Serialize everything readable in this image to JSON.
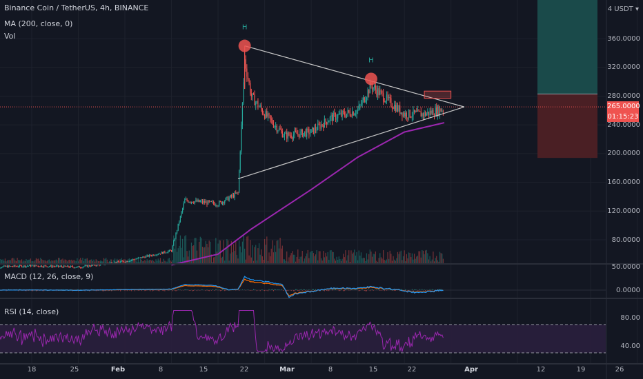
{
  "header": {
    "symbol": "Binance Coin / TetherUS, 4h, BINANCE",
    "indicator": "MA (200, close, 0)",
    "volume": "Vol"
  },
  "currency": "USDT",
  "price_axis": {
    "ticks": [
      "360.0000",
      "320.0000",
      "280.0000",
      "240.0000",
      "200.0000",
      "160.0000",
      "120.0000",
      "80.0000"
    ],
    "last_price": "265.0000",
    "countdown": "01:15:23"
  },
  "macd_panel": {
    "label": "MACD (12, 26, close, 9)",
    "ticks": [
      "50.0000",
      "0.0000"
    ]
  },
  "rsi_panel": {
    "label": "RSI (14, close)",
    "ticks": [
      "80.00",
      "40.00"
    ],
    "overbought": 70,
    "oversold": 30
  },
  "time_axis": [
    {
      "label": "18",
      "bold": false
    },
    {
      "label": "25",
      "bold": false
    },
    {
      "label": "Feb",
      "bold": true
    },
    {
      "label": "8",
      "bold": false
    },
    {
      "label": "15",
      "bold": false
    },
    {
      "label": "22",
      "bold": false
    },
    {
      "label": "Mar",
      "bold": true
    },
    {
      "label": "8",
      "bold": false
    },
    {
      "label": "15",
      "bold": false
    },
    {
      "label": "22",
      "bold": false
    },
    {
      "label": "Apr",
      "bold": true
    },
    {
      "label": "12",
      "bold": false
    },
    {
      "label": "19",
      "bold": false
    },
    {
      "label": "26",
      "bold": false
    }
  ],
  "annotations": {
    "head_marker": "H"
  },
  "colors": {
    "background": "#131722",
    "up": "#26a69a",
    "down": "#ef5350",
    "ma": "#9c27b0",
    "pattern_lines": "#c8c8c8",
    "target_zone": "#1a4a4a",
    "stop_zone": "#4a1f24",
    "rsi_band": "#2a1f3d",
    "rsi_line": "#9c27b0",
    "macd_line": "#2196f3",
    "signal_line": "#ff6d00"
  },
  "chart_data": {
    "type": "line",
    "title": "Binance Coin / TetherUS, 4h, BINANCE",
    "price_close_approx": {
      "x": [
        "Jan 12",
        "Jan 18",
        "Jan 25",
        "Feb 1",
        "Feb 8",
        "Feb 10",
        "Feb 15",
        "Feb 18",
        "Feb 19",
        "Feb 20",
        "Feb 22",
        "Feb 25",
        "Mar 1",
        "Mar 4",
        "Mar 8",
        "Mar 10",
        "Mar 13",
        "Mar 15",
        "Mar 18",
        "Mar 20",
        "Mar 21"
      ],
      "y": [
        42,
        44,
        42,
        50,
        65,
        135,
        130,
        145,
        330,
        280,
        255,
        225,
        230,
        250,
        260,
        295,
        270,
        255,
        255,
        260,
        262
      ]
    },
    "ma200_approx": {
      "x": [
        "Feb 8",
        "Feb 15",
        "Feb 20",
        "Mar 1",
        "Mar 8",
        "Mar 15",
        "Mar 21"
      ],
      "y": [
        45,
        60,
        95,
        150,
        195,
        230,
        243
      ]
    },
    "triangle_pattern": {
      "upper": [
        {
          "x": "Feb 19",
          "y": 350
        },
        {
          "x": "Mar 24",
          "y": 265
        }
      ],
      "lower": [
        {
          "x": "Feb 18",
          "y": 165
        },
        {
          "x": "Mar 24",
          "y": 265
        }
      ]
    },
    "heads": [
      {
        "x": "Feb 19",
        "y": 350
      },
      {
        "x": "Mar 10",
        "y": 304
      }
    ],
    "breakout_box": {
      "x_start": "Mar 18",
      "x_end": "Mar 22",
      "y_low": 277,
      "y_high": 287
    },
    "target_zone": {
      "y_low": 283,
      "y_high": 400
    },
    "stop_zone": {
      "y_low": 194,
      "y_high": 283
    },
    "last_price": 265,
    "macd_ylim": [
      -15,
      55
    ],
    "rsi_ylim": [
      25,
      95
    ],
    "ylim": [
      48,
      410
    ],
    "grid": true
  }
}
